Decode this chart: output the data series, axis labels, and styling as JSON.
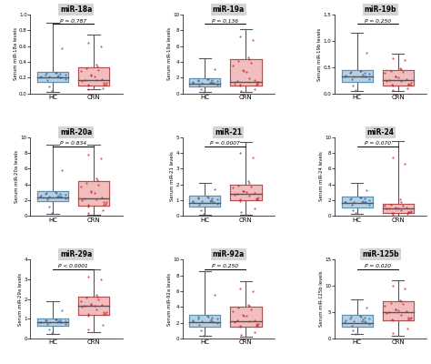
{
  "panels": [
    {
      "title": "miR-18a",
      "ylabel": "Serum miR-18a levels",
      "pvalue": "P = 0.787",
      "ylim": [
        0,
        1.0
      ],
      "yticks": [
        0.0,
        0.2,
        0.4,
        0.6,
        0.8,
        1.0
      ],
      "HC": {
        "q1": 0.15,
        "median": 0.2,
        "q3": 0.28,
        "whislo": 0.02,
        "whishi": 0.9
      },
      "CRN": {
        "q1": 0.1,
        "median": 0.17,
        "q3": 0.33,
        "whislo": 0.05,
        "whishi": 0.75
      }
    },
    {
      "title": "miR-19a",
      "ylabel": "Serum miR-19a levels",
      "pvalue": "P = 0.136",
      "ylim": [
        0,
        10
      ],
      "yticks": [
        0,
        2,
        4,
        6,
        8,
        10
      ],
      "HC": {
        "q1": 0.9,
        "median": 1.3,
        "q3": 1.9,
        "whislo": 0.2,
        "whishi": 4.5
      },
      "CRN": {
        "q1": 1.0,
        "median": 1.5,
        "q3": 4.3,
        "whislo": 0.2,
        "whishi": 8.2
      }
    },
    {
      "title": "miR-19b",
      "ylabel": "Serum miR-19b levels",
      "pvalue": "P = 0.250",
      "ylim": [
        0,
        1.5
      ],
      "yticks": [
        0.0,
        0.5,
        1.0,
        1.5
      ],
      "HC": {
        "q1": 0.22,
        "median": 0.32,
        "q3": 0.45,
        "whislo": 0.05,
        "whishi": 1.15
      },
      "CRN": {
        "q1": 0.15,
        "median": 0.25,
        "q3": 0.45,
        "whislo": 0.05,
        "whishi": 0.75
      }
    },
    {
      "title": "miR-20a",
      "ylabel": "Serum miR-20a levels",
      "pvalue": "P = 0.834",
      "ylim": [
        0,
        10
      ],
      "yticks": [
        0,
        2,
        4,
        6,
        8,
        10
      ],
      "HC": {
        "q1": 1.9,
        "median": 2.4,
        "q3": 3.1,
        "whislo": 0.3,
        "whishi": 9.0
      },
      "CRN": {
        "q1": 1.3,
        "median": 2.2,
        "q3": 4.4,
        "whislo": 0.2,
        "whishi": 9.0
      }
    },
    {
      "title": "miR-21",
      "ylabel": "Serum miR-21 levels",
      "pvalue": "P = 0.0007",
      "ylim": [
        0,
        5
      ],
      "yticks": [
        0,
        1,
        2,
        3,
        4,
        5
      ],
      "HC": {
        "q1": 0.6,
        "median": 0.85,
        "q3": 1.3,
        "whislo": 0.1,
        "whishi": 2.1
      },
      "CRN": {
        "q1": 1.0,
        "median": 1.4,
        "q3": 2.0,
        "whislo": 0.1,
        "whishi": 4.7
      }
    },
    {
      "title": "miR-24",
      "ylabel": "Serum miR-24 levels",
      "pvalue": "P = 0.070",
      "ylim": [
        0,
        10
      ],
      "yticks": [
        0,
        2,
        4,
        6,
        8,
        10
      ],
      "HC": {
        "q1": 1.1,
        "median": 1.7,
        "q3": 2.5,
        "whislo": 0.3,
        "whishi": 4.2
      },
      "CRN": {
        "q1": 0.4,
        "median": 1.0,
        "q3": 1.5,
        "whislo": 0.1,
        "whishi": 9.5
      }
    },
    {
      "title": "miR-29a",
      "ylabel": "Serum miR-29a levels",
      "pvalue": "P < 0.0001",
      "ylim": [
        0,
        4
      ],
      "yticks": [
        0,
        1,
        2,
        3,
        4
      ],
      "HC": {
        "q1": 0.65,
        "median": 0.82,
        "q3": 1.0,
        "whislo": 0.25,
        "whishi": 1.9
      },
      "CRN": {
        "q1": 1.2,
        "median": 1.65,
        "q3": 2.1,
        "whislo": 0.3,
        "whishi": 3.5
      }
    },
    {
      "title": "miR-92a",
      "ylabel": "Serum miR-92a levels",
      "pvalue": "P = 0.250",
      "ylim": [
        0,
        10
      ],
      "yticks": [
        0,
        2,
        4,
        6,
        8,
        10
      ],
      "HC": {
        "q1": 1.5,
        "median": 2.1,
        "q3": 3.0,
        "whislo": 0.3,
        "whishi": 8.5
      },
      "CRN": {
        "q1": 1.5,
        "median": 2.2,
        "q3": 4.0,
        "whislo": 0.2,
        "whishi": 7.2
      }
    },
    {
      "title": "miR-125b",
      "ylabel": "Serum miR-125b levels",
      "pvalue": "P = 0.020",
      "ylim": [
        0,
        15
      ],
      "yticks": [
        0,
        5,
        10,
        15
      ],
      "HC": {
        "q1": 2.2,
        "median": 3.0,
        "q3": 4.5,
        "whislo": 0.8,
        "whishi": 7.5
      },
      "CRN": {
        "q1": 3.5,
        "median": 5.0,
        "q3": 7.0,
        "whislo": 0.5,
        "whishi": 11.0
      }
    }
  ],
  "hc_color": "#b8cfe0",
  "crn_color": "#f0bebe",
  "hc_edge": "#6090b0",
  "crn_edge": "#b05050",
  "dot_color_hc": "#3060a0",
  "dot_color_crn": "#cc2222",
  "median_color": "#555555",
  "whisker_color": "#555555",
  "title_bg": "#d4d4d4",
  "n_hc_dots": 18,
  "n_crn_dots": 22
}
